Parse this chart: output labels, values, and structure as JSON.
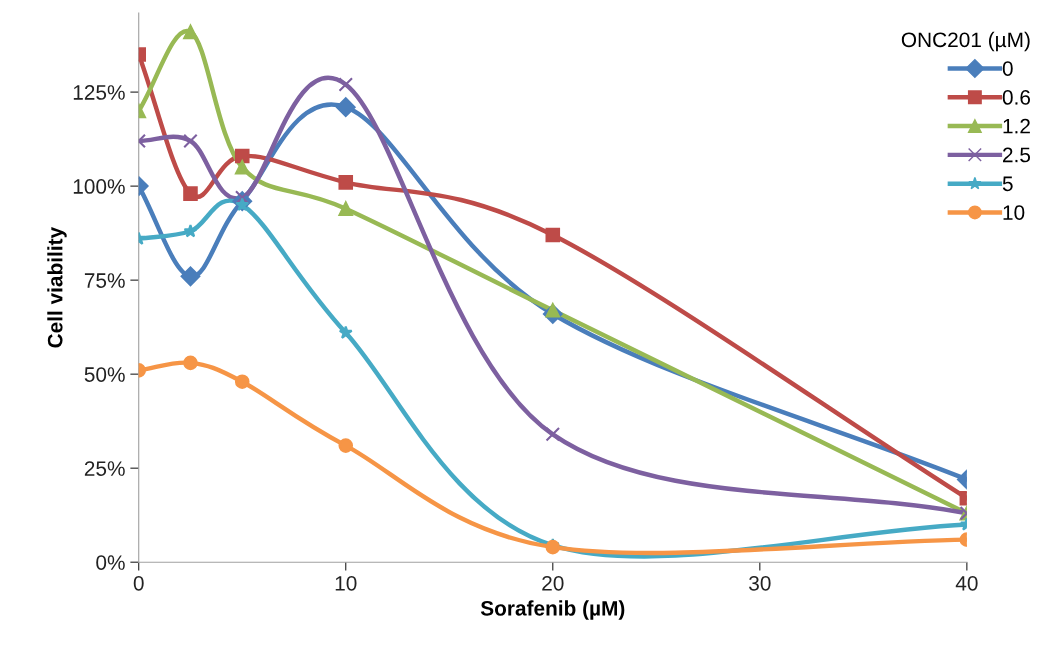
{
  "chart_data": {
    "type": "line",
    "xlabel": "Sorafenib (µM)",
    "ylabel": "Cell viability",
    "legend_title": "ONC201 (µM)",
    "x": [
      0,
      2.5,
      5,
      10,
      20,
      40
    ],
    "series": [
      {
        "name": "0",
        "color": "#4a7ebb",
        "marker": "diamond",
        "values": [
          100,
          76,
          96,
          121,
          66,
          22
        ]
      },
      {
        "name": "0.6",
        "color": "#be4b48",
        "marker": "square",
        "values": [
          135,
          98,
          108,
          101,
          87,
          17
        ]
      },
      {
        "name": "1.2",
        "color": "#98b954",
        "marker": "triangle",
        "values": [
          120,
          141,
          105,
          94,
          67,
          13
        ]
      },
      {
        "name": "2.5",
        "color": "#7d60a0",
        "marker": "cross",
        "values": [
          112,
          112,
          97,
          127,
          34,
          13
        ]
      },
      {
        "name": "5",
        "color": "#46aac5",
        "marker": "star",
        "values": [
          86,
          88,
          95,
          61,
          4.5,
          10
        ]
      },
      {
        "name": "10",
        "color": "#f69546",
        "marker": "circle",
        "values": [
          51,
          53,
          48,
          31,
          4,
          6
        ]
      }
    ],
    "xlim": [
      0,
      40
    ],
    "xticks": [
      0,
      10,
      20,
      30,
      40
    ],
    "ylim": [
      0,
      146
    ],
    "yticks": [
      {
        "value": 0,
        "label": "0%"
      },
      {
        "value": 25,
        "label": "25%"
      },
      {
        "value": 50,
        "label": "50%"
      },
      {
        "value": 75,
        "label": "75%"
      },
      {
        "value": 100,
        "label": "100%"
      },
      {
        "value": 125,
        "label": "125%"
      }
    ],
    "grid": false,
    "legend": "top right",
    "line_style": "solid"
  }
}
